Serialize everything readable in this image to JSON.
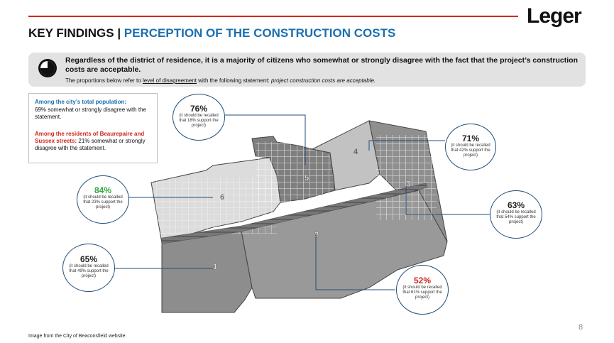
{
  "brand": {
    "logo_text": "Leger"
  },
  "header": {
    "title_part1": "KEY FINDINGS | ",
    "title_part2": "PERCEPTION OF THE CONSTRUCTION COSTS"
  },
  "banner": {
    "icon": "pie-chart-icon",
    "headline": "Regardless of the district of residence, it is a majority of citizens who somewhat or strongly disagree with the fact that the project’s construction costs are acceptable.",
    "sub_prefix": "The proportions below refer to ",
    "sub_underlined": "level of disagreement",
    "sub_middle": " with the following statement: ",
    "sub_italic": "project construction costs are acceptable."
  },
  "infobox": {
    "total_heading": "Among the city’s total population:",
    "total_text": "69% somewhat or strongly disagree with the statement.",
    "residents_heading": "Among the residents of Beaurepaire and Sussex streets:",
    "residents_text": " 21% somewhat or strongly disagree with the statement."
  },
  "colors": {
    "accent_red": "#d0271d",
    "title_blue": "#1a6fb0",
    "highlight_green": "#2eaa3e",
    "leader_line_blue": "#1f4e78"
  },
  "districts": [
    {
      "label": "1",
      "pct": "65%",
      "note": "(it should be recalled that 49% support the project)",
      "pct_color": "dark"
    },
    {
      "label": "2",
      "pct": "52%",
      "note": "(it should be recalled that 61% support the project)",
      "pct_color": "red"
    },
    {
      "label": "3",
      "pct": "63%",
      "note": "(it should be recalled that 54% support the project)",
      "pct_color": "dark"
    },
    {
      "label": "4",
      "pct": "71%",
      "note": "(it should be recalled that 42% support the project)",
      "pct_color": "dark"
    },
    {
      "label": "5",
      "pct": "76%",
      "note": "(it should be recalled that 18% support the project)",
      "pct_color": "dark"
    },
    {
      "label": "6",
      "pct": "84%",
      "note": "(it should be recalled that 23% support the project)",
      "pct_color": "green"
    }
  ],
  "footer": {
    "source": "Image from the City of Beaconsfield website.",
    "page_number": "8"
  }
}
